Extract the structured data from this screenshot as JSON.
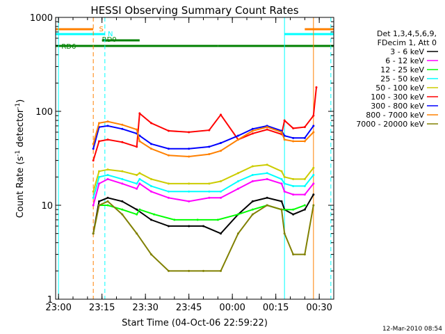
{
  "chart_data": {
    "type": "line",
    "title": "HESSI Observing Summary Count Rates",
    "xlabel": "Start Time (04-Oct-06 22:59:22)",
    "ylabel_main": "Count Rate (s",
    "ylabel_sup1": "-1",
    "ylabel_mid": " detector",
    "ylabel_sup2": "-1",
    "ylabel_end": ")",
    "yscale": "log",
    "xlim": [
      "22:59",
      "00:35"
    ],
    "ylim": [
      1,
      1000
    ],
    "y_ticks": [
      {
        "value": 1,
        "label": "1"
      },
      {
        "value": 10,
        "label": "10"
      },
      {
        "value": 100,
        "label": "100"
      },
      {
        "value": 1000,
        "label": "1000"
      }
    ],
    "x_ticks": [
      {
        "value": "23:00",
        "label": "23:00"
      },
      {
        "value": "23:15",
        "label": "23:15"
      },
      {
        "value": "23:30",
        "label": "23:30"
      },
      {
        "value": "23:45",
        "label": "23:45"
      },
      {
        "value": "00:00",
        "label": "00:00"
      },
      {
        "value": "00:15",
        "label": "00:15"
      },
      {
        "value": "00:30",
        "label": "00:30"
      }
    ],
    "legend_title": [
      "Det 1,3,4,5,6,9,",
      "FDecim 1, Att 0"
    ],
    "legend_position": "right",
    "series": [
      {
        "name": "3 - 6 keV",
        "color": "#000000",
        "x": [
          "23:12",
          "23:14",
          "23:17",
          "23:22",
          "23:27",
          "23:32",
          "23:38",
          "23:45",
          "23:50",
          "23:56",
          "00:02",
          "00:07",
          "00:12",
          "00:17",
          "00:18",
          "00:21",
          "00:25",
          "00:28"
        ],
        "y": [
          5,
          11,
          12,
          11,
          9,
          7,
          6,
          6,
          6,
          5,
          8,
          11,
          12,
          11,
          9,
          8,
          9,
          13
        ]
      },
      {
        "name": "6 - 12 keV",
        "color": "#ff00ff",
        "x": [
          "23:12",
          "23:14",
          "23:17",
          "23:22",
          "23:27",
          "23:28",
          "23:32",
          "23:38",
          "23:45",
          "23:52",
          "23:56",
          "00:02",
          "00:07",
          "00:12",
          "00:17",
          "00:18",
          "00:21",
          "00:25",
          "00:28"
        ],
        "y": [
          10,
          17,
          19,
          17,
          15,
          17,
          14,
          12,
          11,
          12,
          12,
          15,
          18,
          19,
          17,
          14,
          13,
          13,
          17
        ]
      },
      {
        "name": "12 - 25 keV",
        "color": "#00ff00",
        "x": [
          "23:14",
          "23:17",
          "23:22",
          "23:27",
          "23:28",
          "23:33",
          "23:40",
          "23:48",
          "23:55",
          "00:02",
          "00:07",
          "00:12",
          "00:17",
          "00:21",
          "00:25"
        ],
        "y": [
          10,
          10,
          9,
          8,
          9,
          8,
          7,
          7,
          7,
          8,
          9,
          10,
          9,
          9,
          10
        ]
      },
      {
        "name": "25 - 50 keV",
        "color": "#00ffff",
        "x": [
          "23:12",
          "23:14",
          "23:17",
          "23:22",
          "23:27",
          "23:28",
          "23:32",
          "23:38",
          "23:45",
          "23:52",
          "23:56",
          "00:02",
          "00:07",
          "00:12",
          "00:17",
          "00:18",
          "00:21",
          "00:25",
          "00:28"
        ],
        "y": [
          12,
          20,
          21,
          19,
          17,
          19,
          16,
          14,
          14,
          14,
          14,
          18,
          21,
          22,
          19,
          17,
          16,
          16,
          21
        ]
      },
      {
        "name": "50 - 100 keV",
        "color": "#cccc00",
        "x": [
          "23:12",
          "23:14",
          "23:17",
          "23:22",
          "23:27",
          "23:28",
          "23:32",
          "23:38",
          "23:45",
          "23:52",
          "23:56",
          "00:02",
          "00:07",
          "00:12",
          "00:17",
          "00:18",
          "00:21",
          "00:25",
          "00:28"
        ],
        "y": [
          14,
          23,
          24,
          23,
          21,
          22,
          19,
          17,
          17,
          17,
          18,
          22,
          26,
          27,
          23,
          20,
          19,
          19,
          25
        ]
      },
      {
        "name": "100 - 300 keV",
        "color": "#ff0000",
        "x": [
          "23:12",
          "23:14",
          "23:17",
          "23:22",
          "23:27",
          "23:28",
          "23:32",
          "23:38",
          "23:45",
          "23:52",
          "23:56",
          "00:02",
          "00:07",
          "00:12",
          "00:17",
          "00:18",
          "00:21",
          "00:25",
          "00:28",
          "00:29"
        ],
        "y": [
          30,
          48,
          50,
          47,
          42,
          95,
          75,
          62,
          60,
          63,
          92,
          50,
          58,
          64,
          57,
          80,
          66,
          68,
          90,
          180
        ]
      },
      {
        "name": "300 - 800 keV",
        "color": "#0000ff",
        "x": [
          "23:12",
          "23:14",
          "23:17",
          "23:22",
          "23:27",
          "23:28",
          "23:32",
          "23:38",
          "23:45",
          "23:52",
          "23:56",
          "00:02",
          "00:07",
          "00:12",
          "00:17",
          "00:18",
          "00:21",
          "00:25",
          "00:28"
        ],
        "y": [
          40,
          68,
          70,
          65,
          58,
          55,
          45,
          40,
          40,
          42,
          46,
          55,
          65,
          70,
          62,
          55,
          52,
          52,
          70
        ]
      },
      {
        "name": "800 - 7000 keV",
        "color": "#ff8000",
        "x": [
          "23:12",
          "23:14",
          "23:17",
          "23:22",
          "23:27",
          "23:28",
          "23:32",
          "23:38",
          "23:45",
          "23:52",
          "23:56",
          "00:02",
          "00:07",
          "00:12",
          "00:17",
          "00:18",
          "00:21",
          "00:25",
          "00:28"
        ],
        "y": [
          45,
          75,
          78,
          72,
          64,
          48,
          40,
          34,
          33,
          35,
          38,
          50,
          62,
          68,
          60,
          50,
          48,
          48,
          60
        ]
      },
      {
        "name": "7000 - 20000 keV",
        "color": "#808000",
        "x": [
          "23:12",
          "23:14",
          "23:17",
          "23:22",
          "23:27",
          "23:32",
          "23:38",
          "23:45",
          "23:50",
          "23:56",
          "00:02",
          "00:07",
          "00:12",
          "00:17",
          "00:18",
          "00:21",
          "00:25",
          "00:28"
        ],
        "y": [
          5,
          10,
          11,
          8,
          5,
          3,
          2,
          2,
          2,
          2,
          5,
          8,
          10,
          9,
          5,
          3,
          3,
          10
        ]
      }
    ],
    "status_bars": [
      {
        "label": "S",
        "color": "#ff8000",
        "segments": [
          [
            "22:59",
            "23:12"
          ],
          [
            "00:25",
            "00:35"
          ]
        ]
      },
      {
        "label": "N",
        "color": "#00ffff",
        "segments": [
          [
            "22:59",
            "23:16"
          ],
          [
            "00:18",
            "00:35"
          ]
        ]
      },
      {
        "label": "RD0",
        "color": "#008000",
        "segments": [
          [
            "23:15",
            "23:28"
          ]
        ]
      },
      {
        "label": "RD6",
        "color": "#008000",
        "segments": [
          [
            "22:59",
            "23:29"
          ],
          [
            "23:29",
            "23:55"
          ],
          [
            "23:55",
            "00:18"
          ],
          [
            "00:18",
            "00:35"
          ]
        ]
      }
    ],
    "vlines": [
      {
        "x": "23:00",
        "color": "#00ffff",
        "style": "solid"
      },
      {
        "x": "23:12",
        "color": "#ff8000",
        "style": "dashed"
      },
      {
        "x": "23:16",
        "color": "#00ffff",
        "style": "dashed"
      },
      {
        "x": "00:18",
        "color": "#00ffff",
        "style": "solid"
      },
      {
        "x": "00:28",
        "color": "#ff8000",
        "style": "solid"
      },
      {
        "x": "00:34",
        "color": "#00ffff",
        "style": "dashed"
      }
    ],
    "timestamp": "12-Mar-2010 08:54"
  }
}
